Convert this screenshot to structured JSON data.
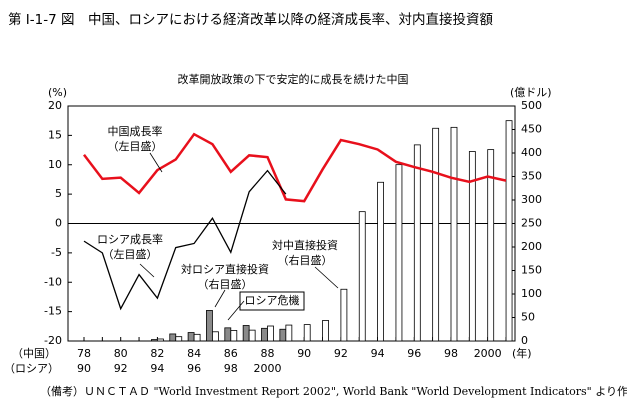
{
  "chart_data": {
    "type": "bar-line",
    "title": "第 I-1-7 図　中国、ロシアにおける経済改革以降の経済成長率、対内直接投資額",
    "subtitle": "改革開放政策の下で安定的に成長を続けた中国",
    "y_label": "(%)",
    "y2_label": "(億ドル)",
    "x_unit": "(年)",
    "row_label_china": "（中国）",
    "row_label_russia": "（ロシア）",
    "categories": [
      "78",
      null,
      "80",
      null,
      "82",
      null,
      "84",
      null,
      "86",
      null,
      "88",
      null,
      "90",
      null,
      "92",
      null,
      "94",
      null,
      "96",
      null,
      "98",
      null,
      "2000",
      null
    ],
    "categories_russia": [
      "90",
      null,
      "92",
      null,
      "94",
      null,
      "96",
      null,
      "98",
      null,
      "2000",
      null,
      null,
      null,
      null,
      null,
      null,
      null,
      null,
      null,
      null,
      null,
      null,
      null
    ],
    "ylim": [
      -20,
      20
    ],
    "yticks": [
      -20,
      -15,
      -10,
      -5,
      0,
      5,
      10,
      15,
      20
    ],
    "y2lim": [
      0,
      500
    ],
    "y2ticks": [
      0,
      50,
      100,
      150,
      200,
      250,
      300,
      350,
      400,
      450,
      500
    ],
    "series": [
      {
        "name": "中国成長率",
        "kind": "line",
        "color": "#e8101c",
        "axis": "y",
        "values": [
          11.7,
          7.6,
          7.8,
          5.2,
          9.1,
          10.9,
          15.2,
          13.5,
          8.8,
          11.6,
          11.3,
          4.1,
          3.8,
          9.2,
          14.2,
          13.5,
          12.6,
          10.5,
          9.6,
          8.8,
          7.8,
          7.1,
          8.0,
          7.3
        ]
      },
      {
        "name": "ロシア成長率",
        "kind": "line",
        "color": "#000000",
        "axis": "y",
        "values": [
          -3.0,
          -5.0,
          -14.5,
          -8.7,
          -12.7,
          -4.1,
          -3.4,
          0.9,
          -4.9,
          5.4,
          9.0,
          5.0,
          null,
          null,
          null,
          null,
          null,
          null,
          null,
          null,
          null,
          null,
          null,
          null
        ]
      },
      {
        "name": "対ロシア直接投資",
        "kind": "bar",
        "color": "#8a8a8a",
        "axis": "y2",
        "values": [
          null,
          null,
          null,
          null,
          3,
          15,
          18,
          65,
          28,
          33,
          27,
          25,
          null,
          null,
          null,
          null,
          null,
          null,
          null,
          null,
          null,
          null,
          null,
          null
        ]
      },
      {
        "name": "対中直接投資",
        "kind": "bar",
        "color": "#ffffff",
        "axis": "y2",
        "values": [
          null,
          null,
          null,
          null,
          4.3,
          9.2,
          14.2,
          19.6,
          22.4,
          23.1,
          31.9,
          33.9,
          34.9,
          43.7,
          110.1,
          275.2,
          337.7,
          375.2,
          417.3,
          452.6,
          454.6,
          403.2,
          407.2,
          468.8
        ]
      }
    ],
    "annotations": [
      {
        "lines": [
          "中国成長率",
          "（左目盛）"
        ]
      },
      {
        "lines": [
          "ロシア成長率",
          "（左目盛）"
        ]
      },
      {
        "lines": [
          "対ロシア直接投資",
          "（右目盛）"
        ]
      },
      {
        "lines": [
          "対中直接投資",
          "（右目盛）"
        ]
      },
      {
        "lines": [
          "ロシア危機"
        ]
      }
    ],
    "source": "（備考）ＵＮＣＴＡＤ \"World Investment Report 2002\", World Bank \"World Development Indicators\"  より作成。"
  }
}
